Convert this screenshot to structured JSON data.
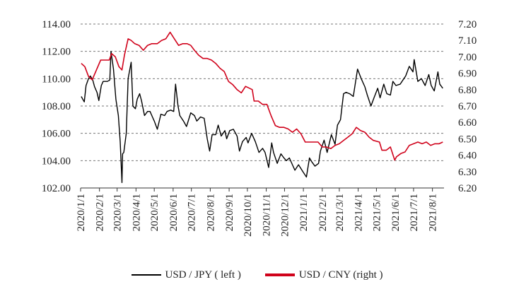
{
  "chart_data": {
    "type": "line",
    "title": "",
    "x_ticks": [
      "2020/1/1",
      "2020/2/1",
      "2020/3/1",
      "2020/4/1",
      "2020/5/1",
      "2020/6/1",
      "2020/7/1",
      "2020/8/1",
      "2020/9/1",
      "2020/10/1",
      "2020/11/1",
      "2020/12/1",
      "2021/1/1",
      "2021/2/1",
      "2021/3/1",
      "2021/4/1",
      "2021/5/1",
      "2021/6/1",
      "2021/7/1",
      "2021/8/1"
    ],
    "x_range": [
      "2020/1/1",
      "2021/8/20"
    ],
    "y_left": {
      "range": [
        102,
        114
      ],
      "ticks": [
        "102.00",
        "104.00",
        "106.00",
        "108.00",
        "110.00",
        "112.00",
        "114.00"
      ]
    },
    "y_right": {
      "range": [
        6.2,
        7.2
      ],
      "ticks": [
        "6.20",
        "6.30",
        "6.40",
        "6.50",
        "6.60",
        "6.70",
        "6.80",
        "6.90",
        "7.00",
        "7.10",
        "7.20"
      ]
    },
    "grid": "horizontal dashed",
    "legend_position": "bottom",
    "colors": {
      "usdjpy": "#000000",
      "usdcny": "#d0021b"
    },
    "series": [
      {
        "name": "USD / JPY ( left )",
        "axis": "left",
        "points": [
          [
            "2020/1/2",
            108.7
          ],
          [
            "2020/1/7",
            108.3
          ],
          [
            "2020/1/10",
            109.5
          ],
          [
            "2020/1/14",
            110.0
          ],
          [
            "2020/1/17",
            110.2
          ],
          [
            "2020/1/21",
            109.9
          ],
          [
            "2020/1/24",
            109.4
          ],
          [
            "2020/1/28",
            109.0
          ],
          [
            "2020/1/31",
            108.4
          ],
          [
            "2020/2/4",
            109.5
          ],
          [
            "2020/2/7",
            109.8
          ],
          [
            "2020/2/11",
            109.8
          ],
          [
            "2020/2/14",
            109.8
          ],
          [
            "2020/2/18",
            109.9
          ],
          [
            "2020/2/20",
            112.0
          ],
          [
            "2020/2/24",
            110.7
          ],
          [
            "2020/2/28",
            108.5
          ],
          [
            "2020/3/3",
            107.3
          ],
          [
            "2020/3/6",
            105.4
          ],
          [
            "2020/3/9",
            102.4
          ],
          [
            "2020/3/10",
            104.5
          ],
          [
            "2020/3/12",
            104.6
          ],
          [
            "2020/3/16",
            106.0
          ],
          [
            "2020/3/19",
            110.0
          ],
          [
            "2020/3/24",
            111.2
          ],
          [
            "2020/3/27",
            108.0
          ],
          [
            "2020/3/31",
            107.8
          ],
          [
            "2020/4/3",
            108.5
          ],
          [
            "2020/4/7",
            108.9
          ],
          [
            "2020/4/10",
            108.4
          ],
          [
            "2020/4/15",
            107.3
          ],
          [
            "2020/4/20",
            107.6
          ],
          [
            "2020/4/24",
            107.6
          ],
          [
            "2020/4/28",
            107.2
          ],
          [
            "2020/5/1",
            106.9
          ],
          [
            "2020/5/6",
            106.3
          ],
          [
            "2020/5/12",
            107.4
          ],
          [
            "2020/5/18",
            107.3
          ],
          [
            "2020/5/22",
            107.6
          ],
          [
            "2020/5/28",
            107.7
          ],
          [
            "2020/6/2",
            107.6
          ],
          [
            "2020/6/5",
            109.6
          ],
          [
            "2020/6/9",
            108.0
          ],
          [
            "2020/6/12",
            107.3
          ],
          [
            "2020/6/18",
            106.9
          ],
          [
            "2020/6/23",
            106.5
          ],
          [
            "2020/6/30",
            107.5
          ],
          [
            "2020/7/6",
            107.3
          ],
          [
            "2020/7/10",
            106.9
          ],
          [
            "2020/7/16",
            107.2
          ],
          [
            "2020/7/22",
            107.1
          ],
          [
            "2020/7/27",
            105.6
          ],
          [
            "2020/7/31",
            104.7
          ],
          [
            "2020/8/4",
            105.9
          ],
          [
            "2020/8/10",
            105.9
          ],
          [
            "2020/8/14",
            106.6
          ],
          [
            "2020/8/19",
            105.8
          ],
          [
            "2020/8/25",
            106.2
          ],
          [
            "2020/8/28",
            105.6
          ],
          [
            "2020/9/2",
            106.2
          ],
          [
            "2020/9/8",
            106.3
          ],
          [
            "2020/9/14",
            105.8
          ],
          [
            "2020/9/18",
            104.7
          ],
          [
            "2020/9/23",
            105.4
          ],
          [
            "2020/9/29",
            105.7
          ],
          [
            "2020/10/2",
            105.3
          ],
          [
            "2020/10/8",
            106.0
          ],
          [
            "2020/10/14",
            105.4
          ],
          [
            "2020/10/20",
            104.6
          ],
          [
            "2020/10/26",
            104.9
          ],
          [
            "2020/10/30",
            104.6
          ],
          [
            "2020/11/5",
            103.5
          ],
          [
            "2020/11/10",
            105.3
          ],
          [
            "2020/11/13",
            104.6
          ],
          [
            "2020/11/19",
            103.8
          ],
          [
            "2020/11/25",
            104.5
          ],
          [
            "2020/11/30",
            104.2
          ],
          [
            "2020/12/4",
            104.0
          ],
          [
            "2020/12/9",
            104.2
          ],
          [
            "2020/12/15",
            103.6
          ],
          [
            "2020/12/18",
            103.3
          ],
          [
            "2020/12/24",
            103.7
          ],
          [
            "2020/12/31",
            103.2
          ],
          [
            "2021/1/6",
            102.8
          ],
          [
            "2021/1/11",
            104.2
          ],
          [
            "2021/1/15",
            103.9
          ],
          [
            "2021/1/20",
            103.6
          ],
          [
            "2021/1/26",
            103.8
          ],
          [
            "2021/1/29",
            104.7
          ],
          [
            "2021/2/4",
            105.5
          ],
          [
            "2021/2/9",
            104.6
          ],
          [
            "2021/2/16",
            105.9
          ],
          [
            "2021/2/22",
            105.2
          ],
          [
            "2021/2/26",
            106.6
          ],
          [
            "2021/3/3",
            107.0
          ],
          [
            "2021/3/8",
            108.9
          ],
          [
            "2021/3/12",
            109.0
          ],
          [
            "2021/3/18",
            108.9
          ],
          [
            "2021/3/24",
            108.7
          ],
          [
            "2021/3/31",
            110.7
          ],
          [
            "2021/4/6",
            110.0
          ],
          [
            "2021/4/12",
            109.4
          ],
          [
            "2021/4/16",
            108.8
          ],
          [
            "2021/4/22",
            108.0
          ],
          [
            "2021/4/27",
            108.6
          ],
          [
            "2021/5/3",
            109.3
          ],
          [
            "2021/5/7",
            108.6
          ],
          [
            "2021/5/13",
            109.6
          ],
          [
            "2021/5/18",
            108.9
          ],
          [
            "2021/5/24",
            108.8
          ],
          [
            "2021/5/28",
            109.8
          ],
          [
            "2021/6/2",
            109.5
          ],
          [
            "2021/6/9",
            109.6
          ],
          [
            "2021/6/15",
            110.0
          ],
          [
            "2021/6/18",
            110.2
          ],
          [
            "2021/6/24",
            110.9
          ],
          [
            "2021/6/30",
            110.5
          ],
          [
            "2021/7/2",
            111.4
          ],
          [
            "2021/7/8",
            109.8
          ],
          [
            "2021/7/14",
            110.0
          ],
          [
            "2021/7/20",
            109.5
          ],
          [
            "2021/7/26",
            110.3
          ],
          [
            "2021/7/30",
            109.5
          ],
          [
            "2021/8/4",
            109.1
          ],
          [
            "2021/8/10",
            110.5
          ],
          [
            "2021/8/13",
            109.6
          ],
          [
            "2021/8/18",
            109.3
          ]
        ]
      },
      {
        "name": "USD / CNY  (right )",
        "axis": "right",
        "points": [
          [
            "2020/1/2",
            6.96
          ],
          [
            "2020/1/8",
            6.94
          ],
          [
            "2020/1/14",
            6.88
          ],
          [
            "2020/1/20",
            6.86
          ],
          [
            "2020/2/3",
            6.98
          ],
          [
            "2020/2/10",
            6.98
          ],
          [
            "2020/2/17",
            6.98
          ],
          [
            "2020/2/21",
            7.02
          ],
          [
            "2020/2/27",
            7.0
          ],
          [
            "2020/3/4",
            6.94
          ],
          [
            "2020/3/9",
            6.92
          ],
          [
            "2020/3/13",
            7.01
          ],
          [
            "2020/3/19",
            7.11
          ],
          [
            "2020/3/24",
            7.1
          ],
          [
            "2020/3/30",
            7.08
          ],
          [
            "2020/4/6",
            7.07
          ],
          [
            "2020/4/13",
            7.04
          ],
          [
            "2020/4/20",
            7.07
          ],
          [
            "2020/4/27",
            7.08
          ],
          [
            "2020/5/6",
            7.08
          ],
          [
            "2020/5/13",
            7.1
          ],
          [
            "2020/5/20",
            7.11
          ],
          [
            "2020/5/27",
            7.15
          ],
          [
            "2020/6/3",
            7.11
          ],
          [
            "2020/6/10",
            7.07
          ],
          [
            "2020/6/17",
            7.08
          ],
          [
            "2020/6/24",
            7.08
          ],
          [
            "2020/6/30",
            7.07
          ],
          [
            "2020/7/6",
            7.04
          ],
          [
            "2020/7/13",
            7.01
          ],
          [
            "2020/7/20",
            6.99
          ],
          [
            "2020/7/27",
            6.99
          ],
          [
            "2020/8/3",
            6.98
          ],
          [
            "2020/8/10",
            6.96
          ],
          [
            "2020/8/17",
            6.93
          ],
          [
            "2020/8/24",
            6.91
          ],
          [
            "2020/8/31",
            6.85
          ],
          [
            "2020/9/7",
            6.83
          ],
          [
            "2020/9/14",
            6.8
          ],
          [
            "2020/9/21",
            6.78
          ],
          [
            "2020/9/28",
            6.82
          ],
          [
            "2020/10/9",
            6.8
          ],
          [
            "2020/10/12",
            6.73
          ],
          [
            "2020/10/19",
            6.73
          ],
          [
            "2020/10/26",
            6.71
          ],
          [
            "2020/11/2",
            6.71
          ],
          [
            "2020/11/9",
            6.64
          ],
          [
            "2020/11/16",
            6.58
          ],
          [
            "2020/11/23",
            6.57
          ],
          [
            "2020/11/30",
            6.57
          ],
          [
            "2020/12/7",
            6.56
          ],
          [
            "2020/12/14",
            6.54
          ],
          [
            "2020/12/21",
            6.56
          ],
          [
            "2020/12/28",
            6.53
          ],
          [
            "2021/1/4",
            6.48
          ],
          [
            "2021/1/11",
            6.48
          ],
          [
            "2021/1/18",
            6.48
          ],
          [
            "2021/1/25",
            6.48
          ],
          [
            "2021/2/1",
            6.45
          ],
          [
            "2021/2/8",
            6.45
          ],
          [
            "2021/2/15",
            6.44
          ],
          [
            "2021/2/22",
            6.46
          ],
          [
            "2021/3/1",
            6.47
          ],
          [
            "2021/3/8",
            6.49
          ],
          [
            "2021/3/15",
            6.51
          ],
          [
            "2021/3/22",
            6.53
          ],
          [
            "2021/3/29",
            6.57
          ],
          [
            "2021/4/5",
            6.55
          ],
          [
            "2021/4/12",
            6.54
          ],
          [
            "2021/4/19",
            6.51
          ],
          [
            "2021/4/26",
            6.49
          ],
          [
            "2021/5/6",
            6.48
          ],
          [
            "2021/5/10",
            6.43
          ],
          [
            "2021/5/17",
            6.43
          ],
          [
            "2021/5/24",
            6.45
          ],
          [
            "2021/5/31",
            6.37
          ],
          [
            "2021/6/3",
            6.39
          ],
          [
            "2021/6/10",
            6.41
          ],
          [
            "2021/6/17",
            6.42
          ],
          [
            "2021/6/24",
            6.46
          ],
          [
            "2021/7/1",
            6.47
          ],
          [
            "2021/7/8",
            6.48
          ],
          [
            "2021/7/15",
            6.47
          ],
          [
            "2021/7/22",
            6.48
          ],
          [
            "2021/7/29",
            6.46
          ],
          [
            "2021/8/5",
            6.47
          ],
          [
            "2021/8/12",
            6.47
          ],
          [
            "2021/8/18",
            6.48
          ]
        ]
      }
    ]
  }
}
